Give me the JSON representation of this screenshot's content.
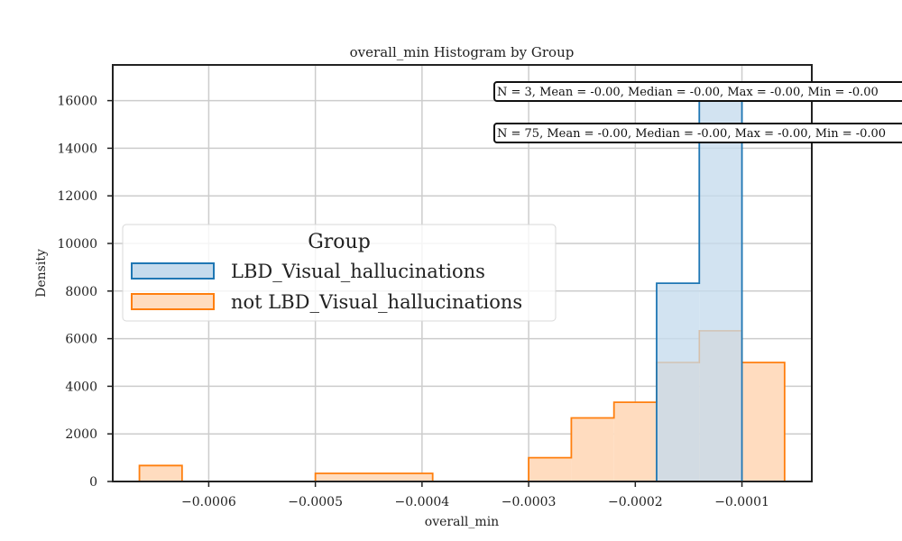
{
  "chart_data": {
    "type": "histogram",
    "title": "overall_min Histogram by Group",
    "xlabel": "overall_min",
    "ylabel": "Density",
    "xlim": [
      -0.00069,
      -3.45e-05
    ],
    "ylim": [
      0,
      17500
    ],
    "xticks": [
      -0.0006,
      -0.0005,
      -0.0004,
      -0.0003,
      -0.0002,
      -0.0001
    ],
    "xtick_labels": [
      "−0.0006",
      "−0.0005",
      "−0.0004",
      "−0.0003",
      "−0.0002",
      "−0.0001"
    ],
    "yticks": [
      0,
      2000,
      4000,
      6000,
      8000,
      10000,
      12000,
      14000,
      16000
    ],
    "ytick_labels": [
      "0",
      "2000",
      "4000",
      "6000",
      "8000",
      "10000",
      "12000",
      "14000",
      "16000"
    ],
    "grid": true,
    "legend": {
      "title": "Group",
      "placement": "center-left"
    },
    "series": [
      {
        "name": "LBD_Visual_hallucinations",
        "color": "#1f77b4",
        "fill": "#c5dbed",
        "bins": [
          {
            "x0": -0.00018,
            "x1": -0.00014,
            "value": 8330
          },
          {
            "x0": -0.00014,
            "x1": -0.0001,
            "value": 16660
          }
        ]
      },
      {
        "name": "not LBD_Visual_hallucinations",
        "color": "#ff7f0e",
        "fill": "#ffdcbf",
        "bins": [
          {
            "x0": -0.000665,
            "x1": -0.000625,
            "value": 670
          },
          {
            "x0": -0.0005,
            "x1": -0.00039,
            "value": 340
          },
          {
            "x0": -0.0003,
            "x1": -0.00026,
            "value": 1000
          },
          {
            "x0": -0.00026,
            "x1": -0.00022,
            "value": 2670
          },
          {
            "x0": -0.00022,
            "x1": -0.00018,
            "value": 3330
          },
          {
            "x0": -0.00018,
            "x1": -0.00014,
            "value": 5000
          },
          {
            "x0": -0.00014,
            "x1": -0.0001,
            "value": 6330
          },
          {
            "x0": -0.0001,
            "x1": -6e-05,
            "value": 5000
          }
        ]
      }
    ],
    "annotations": [
      "N = 3, Mean = -0.00, Median = -0.00, Max = -0.00, Min = -0.00",
      "N = 75, Mean = -0.00, Median = -0.00, Max = -0.00, Min = -0.00"
    ]
  }
}
